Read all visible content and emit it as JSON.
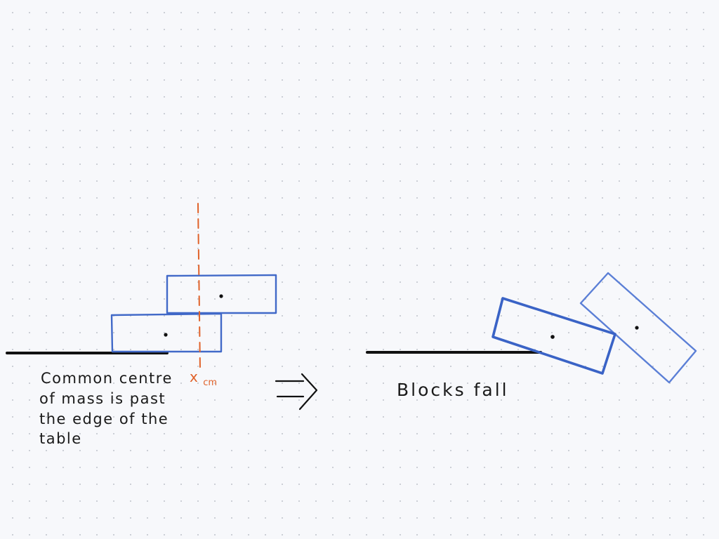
{
  "colors": {
    "background": "#f7f8fb",
    "dot_grid": "#c9ccd3",
    "block_stroke": "#4169c8",
    "table_line": "#111111",
    "centre_of_mass_line": "#e0622a",
    "ink": "#1a1a1a"
  },
  "left_scene": {
    "caption_lines": [
      "Common centre",
      "of mass is past",
      "the edge of the",
      "table"
    ],
    "centre_of_mass_label": {
      "main": "x",
      "subscript": "cm"
    }
  },
  "implies_arrow": "⇒",
  "right_scene": {
    "caption": "Blocks fall"
  }
}
